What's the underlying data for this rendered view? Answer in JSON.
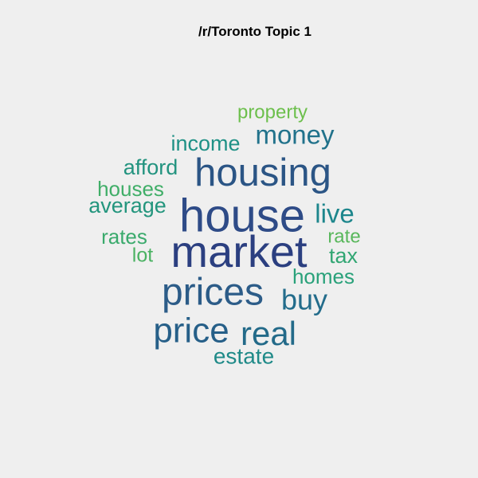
{
  "chart_data": {
    "type": "wordcloud",
    "title": "/r/Toronto Topic 1",
    "words": [
      {
        "text": "market",
        "color": "#2b3f80"
      },
      {
        "text": "house",
        "color": "#2e4b87"
      },
      {
        "text": "housing",
        "color": "#2b5585"
      },
      {
        "text": "prices",
        "color": "#2c5c88"
      },
      {
        "text": "price",
        "color": "#265f88"
      },
      {
        "text": "real",
        "color": "#236a89"
      },
      {
        "text": "buy",
        "color": "#236c8b"
      },
      {
        "text": "money",
        "color": "#21728b"
      },
      {
        "text": "live",
        "color": "#1d868c"
      },
      {
        "text": "estate",
        "color": "#1f8a88"
      },
      {
        "text": "income",
        "color": "#1f9186"
      },
      {
        "text": "afford",
        "color": "#22937f"
      },
      {
        "text": "average",
        "color": "#23957d"
      },
      {
        "text": "homes",
        "color": "#29a17a"
      },
      {
        "text": "tax",
        "color": "#31a673"
      },
      {
        "text": "rates",
        "color": "#3aaa6c"
      },
      {
        "text": "houses",
        "color": "#40ae68"
      },
      {
        "text": "lot",
        "color": "#4ab262"
      },
      {
        "text": "rate",
        "color": "#58b75b"
      },
      {
        "text": "property",
        "color": "#6cbf4c"
      }
    ]
  }
}
